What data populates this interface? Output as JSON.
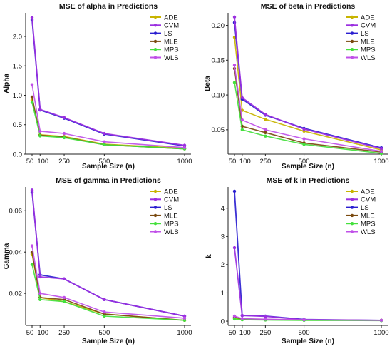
{
  "colors": {
    "ADE": "#c8b400",
    "CVM": "#9b30e0",
    "LS": "#2a1ed0",
    "MLE": "#7a4a10",
    "MPS": "#44e03c",
    "WLS": "#c050e8"
  },
  "chart_data": [
    {
      "type": "line",
      "title": "MSE of alpha in Predictions",
      "xlabel": "Sample Size (n)",
      "ylabel": "Alpha",
      "x": [
        50,
        100,
        250,
        500,
        1000
      ],
      "xticks": [
        "50",
        "100",
        "250",
        "500",
        "1000"
      ],
      "ylim": [
        0,
        2.4
      ],
      "yticks": [
        0.0,
        0.5,
        1.0,
        1.5,
        2.0
      ],
      "ytick_labels": [
        "0.0",
        "0.5",
        "1.0",
        "1.5",
        "2.0"
      ],
      "legend": "top-right",
      "series": [
        {
          "name": "ADE",
          "values": [
            0.92,
            0.33,
            0.3,
            0.17,
            0.1
          ]
        },
        {
          "name": "CVM",
          "values": [
            2.32,
            0.76,
            0.62,
            0.35,
            0.15
          ]
        },
        {
          "name": "LS",
          "values": [
            2.28,
            0.75,
            0.61,
            0.34,
            0.14
          ]
        },
        {
          "name": "MLE",
          "values": [
            0.97,
            0.32,
            0.29,
            0.16,
            0.09
          ]
        },
        {
          "name": "MPS",
          "values": [
            0.88,
            0.31,
            0.28,
            0.16,
            0.09
          ]
        },
        {
          "name": "WLS",
          "values": [
            1.18,
            0.39,
            0.35,
            0.21,
            0.11
          ]
        }
      ]
    },
    {
      "type": "line",
      "title": "MSE of beta in Predictions",
      "xlabel": "Sample Size (n)",
      "ylabel": "Beta",
      "x": [
        50,
        100,
        250,
        500,
        1000
      ],
      "xticks": [
        "50",
        "100",
        "250",
        "500",
        "1000"
      ],
      "ylim": [
        0.015,
        0.218
      ],
      "yticks": [
        0.05,
        0.1,
        0.15,
        0.2
      ],
      "ytick_labels": [
        "0.05",
        "0.10",
        "0.15",
        "0.20"
      ],
      "legend": "top-right",
      "series": [
        {
          "name": "ADE",
          "values": [
            0.183,
            0.078,
            0.065,
            0.048,
            0.021
          ]
        },
        {
          "name": "CVM",
          "values": [
            0.212,
            0.096,
            0.072,
            0.051,
            0.023
          ]
        },
        {
          "name": "LS",
          "values": [
            0.204,
            0.094,
            0.071,
            0.052,
            0.024
          ]
        },
        {
          "name": "MLE",
          "values": [
            0.138,
            0.055,
            0.046,
            0.031,
            0.018
          ]
        },
        {
          "name": "MPS",
          "values": [
            0.118,
            0.05,
            0.041,
            0.029,
            0.016
          ]
        },
        {
          "name": "WLS",
          "values": [
            0.143,
            0.064,
            0.05,
            0.037,
            0.019
          ]
        }
      ]
    },
    {
      "type": "line",
      "title": "MSE of gamma in Predictions",
      "xlabel": "Sample Size (n)",
      "ylabel": "Gamma",
      "x": [
        50,
        100,
        250,
        500,
        1000
      ],
      "xticks": [
        "50",
        "100",
        "250",
        "500",
        "1000"
      ],
      "ylim": [
        0.0045,
        0.0715
      ],
      "yticks": [
        0.02,
        0.04,
        0.06
      ],
      "ytick_labels": [
        "0.02",
        "0.04",
        "0.06"
      ],
      "legend": "top-right",
      "series": [
        {
          "name": "ADE",
          "values": [
            0.039,
            0.018,
            0.016,
            0.01,
            0.007
          ]
        },
        {
          "name": "CVM",
          "values": [
            0.07,
            0.028,
            0.027,
            0.017,
            0.009
          ]
        },
        {
          "name": "LS",
          "values": [
            0.069,
            0.029,
            0.027,
            0.017,
            0.009
          ]
        },
        {
          "name": "MLE",
          "values": [
            0.04,
            0.018,
            0.017,
            0.01,
            0.007
          ]
        },
        {
          "name": "MPS",
          "values": [
            0.034,
            0.017,
            0.016,
            0.009,
            0.007
          ]
        },
        {
          "name": "WLS",
          "values": [
            0.043,
            0.02,
            0.018,
            0.011,
            0.008
          ]
        }
      ]
    },
    {
      "type": "line",
      "title": "MSE of k in Predictions",
      "xlabel": "Sample Size (n)",
      "ylabel": "k",
      "x": [
        50,
        100,
        250,
        500,
        1000
      ],
      "xticks": [
        "50",
        "100",
        "250",
        "500",
        "1000"
      ],
      "ylim": [
        -0.15,
        4.75
      ],
      "yticks": [
        0,
        1,
        2,
        3,
        4
      ],
      "ytick_labels": [
        "0",
        "1",
        "2",
        "3",
        "4"
      ],
      "legend": "top-right",
      "series": [
        {
          "name": "ADE",
          "values": [
            0.1,
            0.06,
            0.05,
            0.04,
            0.03
          ]
        },
        {
          "name": "CVM",
          "values": [
            2.6,
            0.2,
            0.17,
            0.05,
            0.03
          ]
        },
        {
          "name": "LS",
          "values": [
            4.6,
            0.2,
            0.18,
            0.06,
            0.03
          ]
        },
        {
          "name": "MLE",
          "values": [
            0.14,
            0.08,
            0.06,
            0.04,
            0.03
          ]
        },
        {
          "name": "MPS",
          "values": [
            0.08,
            0.05,
            0.04,
            0.03,
            0.02
          ]
        },
        {
          "name": "WLS",
          "values": [
            0.18,
            0.09,
            0.07,
            0.05,
            0.03
          ]
        }
      ]
    }
  ]
}
